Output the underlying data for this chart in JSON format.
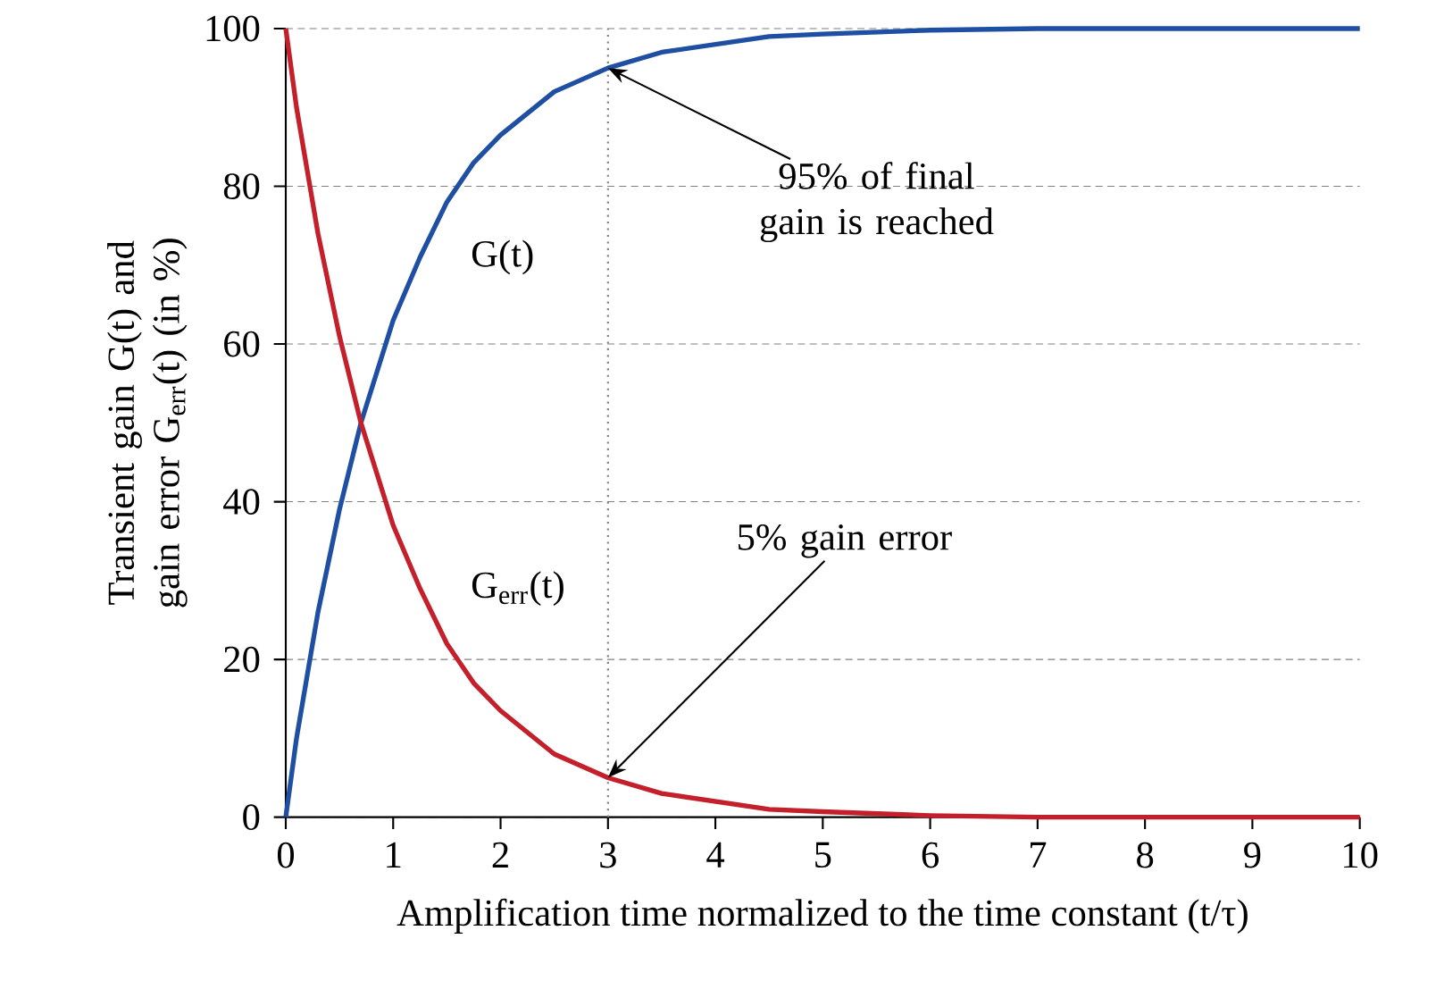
{
  "chart_data": {
    "type": "line",
    "xlabel": "Amplification time normalized to the time constant (t/τ)",
    "ylabel": "Transient gain G(t) and gain error G$_{err}$(t) (in %)",
    "xlim": [
      0,
      10
    ],
    "ylim": [
      0,
      100
    ],
    "xticks": [
      0,
      1,
      2,
      3,
      4,
      5,
      6,
      7,
      8,
      9,
      10
    ],
    "yticks": [
      0,
      20,
      40,
      60,
      80,
      100
    ],
    "grid": "y",
    "x": [
      0,
      0.1,
      0.2,
      0.3,
      0.5,
      0.7,
      1,
      1.25,
      1.5,
      1.75,
      2,
      2.5,
      3,
      3.5,
      4,
      4.5,
      5,
      6,
      7,
      8,
      9,
      10
    ],
    "series": [
      {
        "name": "G(t)",
        "color": "#1f4fa3",
        "values": [
          0,
          10,
          18,
          26,
          39,
          50,
          63,
          71,
          78,
          83,
          86.5,
          92,
          95,
          97,
          98,
          99,
          99.3,
          99.8,
          100,
          100,
          100,
          100
        ]
      },
      {
        "name": "G$_{err}$(t)",
        "color": "#c4202b",
        "values": [
          100,
          90,
          82,
          74,
          61,
          50,
          37,
          29,
          22,
          17,
          13.5,
          8,
          5,
          3,
          2,
          1,
          0.7,
          0.2,
          0,
          0,
          0,
          0
        ]
      }
    ],
    "ref_lines": [
      {
        "axis": "x",
        "value": 3,
        "color": "#808080",
        "line_style": "dotted"
      }
    ],
    "annotations": [
      {
        "text": "95% of final gain is reached",
        "x": 3,
        "y": 95
      },
      {
        "text": "5% gain error",
        "x": 3,
        "y": 5
      }
    ]
  }
}
